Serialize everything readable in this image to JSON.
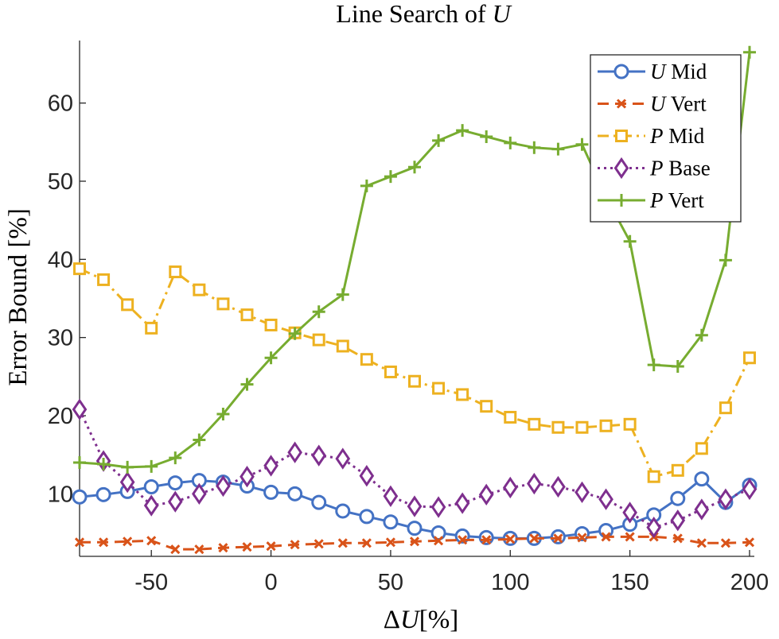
{
  "chart_data": {
    "type": "line",
    "title_prefix": "Line Search of ",
    "title_symbol": "U",
    "xlabel_delta": "Δ",
    "xlabel_symbol": "U",
    "xlabel_unit": "[%]",
    "ylabel": "Error Bound [%]",
    "xlim": [
      -80,
      202
    ],
    "ylim": [
      2,
      68
    ],
    "xticks": [
      -50,
      0,
      50,
      100,
      150,
      200
    ],
    "xtick_labels": [
      "-50",
      "0",
      "50",
      "100",
      "150",
      "200"
    ],
    "yticks": [
      10,
      20,
      30,
      40,
      50,
      60
    ],
    "ytick_labels": [
      "10",
      "20",
      "30",
      "40",
      "50",
      "60"
    ],
    "grid": false,
    "legend_position": "top-right",
    "x": [
      -80,
      -70,
      -60,
      -50,
      -40,
      -30,
      -20,
      -10,
      0,
      10,
      20,
      30,
      40,
      50,
      60,
      70,
      80,
      90,
      100,
      110,
      120,
      130,
      140,
      150,
      160,
      170,
      180,
      190,
      200
    ],
    "series": [
      {
        "symbol": "U",
        "label": "Mid",
        "color": "#4472c4",
        "dash": "solid",
        "marker": "circle",
        "values": [
          9.6,
          9.9,
          10.3,
          10.9,
          11.4,
          11.7,
          11.5,
          11.0,
          10.2,
          10.0,
          8.9,
          7.8,
          7.1,
          6.4,
          5.6,
          5.0,
          4.6,
          4.4,
          4.3,
          4.3,
          4.5,
          4.9,
          5.3,
          6.1,
          7.3,
          9.4,
          11.9,
          8.9,
          11.1
        ]
      },
      {
        "symbol": "U",
        "label": "Vert",
        "color": "#d95319",
        "dash": "dashed",
        "marker": "x",
        "values": [
          3.8,
          3.8,
          3.9,
          4.0,
          2.9,
          2.9,
          3.1,
          3.2,
          3.3,
          3.5,
          3.6,
          3.7,
          3.7,
          3.8,
          3.9,
          4.0,
          4.1,
          4.1,
          4.2,
          4.3,
          4.3,
          4.4,
          4.5,
          4.5,
          4.5,
          4.3,
          3.7,
          3.7,
          3.8
        ]
      },
      {
        "symbol": "P",
        "label": "Mid",
        "color": "#edb120",
        "dash": "dashdot",
        "marker": "square",
        "values": [
          38.8,
          37.4,
          34.2,
          31.2,
          38.4,
          36.1,
          34.3,
          32.9,
          31.6,
          30.6,
          29.7,
          28.9,
          27.2,
          25.6,
          24.4,
          23.5,
          22.7,
          21.2,
          19.8,
          18.9,
          18.5,
          18.5,
          18.7,
          18.9,
          12.2,
          13.0,
          15.8,
          21.0,
          27.4
        ]
      },
      {
        "symbol": "P",
        "label": "Base",
        "color": "#7e2f8e",
        "dash": "dotted",
        "marker": "diamond",
        "values": [
          20.8,
          14.2,
          11.5,
          8.5,
          9.0,
          10.0,
          11.0,
          12.2,
          13.6,
          15.3,
          14.9,
          14.5,
          12.3,
          9.7,
          8.4,
          8.3,
          8.8,
          9.9,
          10.8,
          11.3,
          10.9,
          10.2,
          9.3,
          7.6,
          5.7,
          6.6,
          8.0,
          9.3,
          10.6
        ]
      },
      {
        "symbol": "P",
        "label": "Vert",
        "color": "#77ac30",
        "dash": "solid",
        "marker": "plus",
        "values": [
          14.0,
          13.8,
          13.4,
          13.5,
          14.6,
          16.9,
          20.2,
          24.0,
          27.4,
          30.5,
          33.3,
          35.5,
          49.4,
          50.6,
          51.8,
          55.2,
          56.5,
          55.7,
          54.9,
          54.3,
          54.1,
          54.7,
          48.0,
          42.3,
          26.5,
          26.3,
          30.3,
          39.9,
          66.5
        ]
      }
    ]
  }
}
